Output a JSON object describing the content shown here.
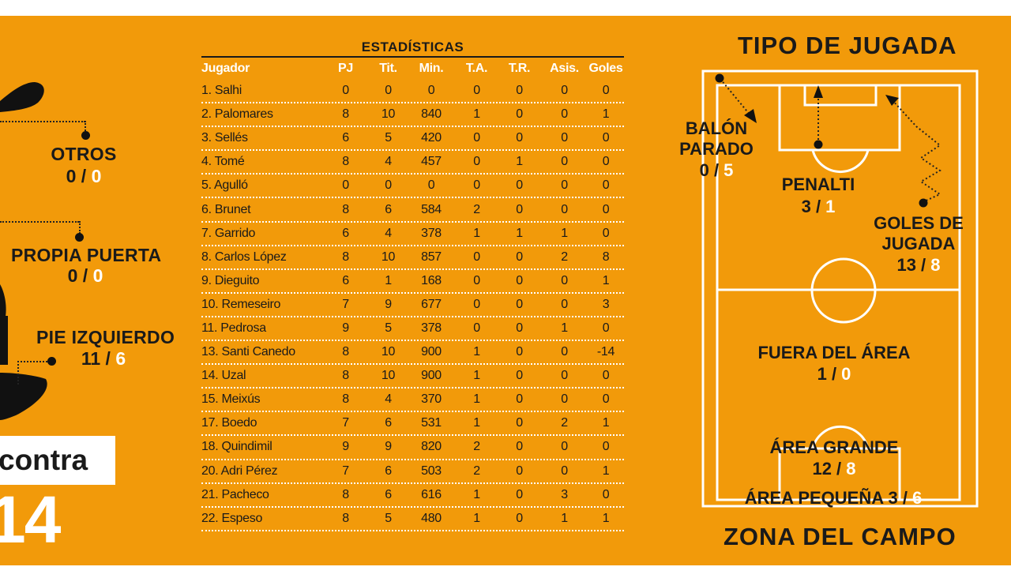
{
  "left": {
    "otros": {
      "label": "OTROS",
      "a": "0",
      "b": "0"
    },
    "propia_puerta": {
      "label": "PROPIA PUERTA",
      "a": "0",
      "b": "0"
    },
    "pie_izquierdo": {
      "label": "PIE IZQUIERDO",
      "a": "11",
      "b": "6"
    },
    "contra_label": "contra",
    "total": "14",
    "separator": " / "
  },
  "table": {
    "title": "ESTADÍSTICAS",
    "headers": [
      "Jugador",
      "PJ",
      "Tit.",
      "Min.",
      "T.A.",
      "T.R.",
      "Asis.",
      "Goles"
    ],
    "rows": [
      [
        "1. Salhi",
        "0",
        "0",
        "0",
        "0",
        "0",
        "0",
        "0"
      ],
      [
        "2. Palomares",
        "8",
        "10",
        "840",
        "1",
        "0",
        "0",
        "1"
      ],
      [
        "3. Sellés",
        "6",
        "5",
        "420",
        "0",
        "0",
        "0",
        "0"
      ],
      [
        "4. Tomé",
        "8",
        "4",
        "457",
        "0",
        "1",
        "0",
        "0"
      ],
      [
        "5. Agulló",
        "0",
        "0",
        "0",
        "0",
        "0",
        "0",
        "0"
      ],
      [
        "6. Brunet",
        "8",
        "6",
        "584",
        "2",
        "0",
        "0",
        "0"
      ],
      [
        "7. Garrido",
        "6",
        "4",
        "378",
        "1",
        "1",
        "1",
        "0"
      ],
      [
        "8. Carlos López",
        "8",
        "10",
        "857",
        "0",
        "0",
        "2",
        "8"
      ],
      [
        "9. Dieguito",
        "6",
        "1",
        "168",
        "0",
        "0",
        "0",
        "1"
      ],
      [
        "10. Remeseiro",
        "7",
        "9",
        "677",
        "0",
        "0",
        "0",
        "3"
      ],
      [
        "11. Pedrosa",
        "9",
        "5",
        "378",
        "0",
        "0",
        "1",
        "0"
      ],
      [
        "13. Santi Canedo",
        "8",
        "10",
        "900",
        "1",
        "0",
        "0",
        "-14"
      ],
      [
        "14. Uzal",
        "8",
        "10",
        "900",
        "1",
        "0",
        "0",
        "0"
      ],
      [
        "15. Meixús",
        "8",
        "4",
        "370",
        "1",
        "0",
        "0",
        "0"
      ],
      [
        "17. Boedo",
        "7",
        "6",
        "531",
        "1",
        "0",
        "2",
        "1"
      ],
      [
        "18. Quindimil",
        "9",
        "9",
        "820",
        "2",
        "0",
        "0",
        "0"
      ],
      [
        "20. Adri Pérez",
        "7",
        "6",
        "503",
        "2",
        "0",
        "0",
        "1"
      ],
      [
        "21. Pacheco",
        "8",
        "6",
        "616",
        "1",
        "0",
        "3",
        "0"
      ],
      [
        "22. Espeso",
        "8",
        "5",
        "480",
        "1",
        "0",
        "1",
        "1"
      ]
    ]
  },
  "right": {
    "tipo_title": "TIPO DE JUGADA",
    "zona_title": "ZONA DEL CAMPO",
    "balon_parado": {
      "label1": "BALÓN",
      "label2": "PARADO",
      "a": "0",
      "b": "5"
    },
    "penalti": {
      "label": "PENALTI",
      "a": "3",
      "b": "1"
    },
    "goles_jugada": {
      "label1": "GOLES DE",
      "label2": "JUGADA",
      "a": "13",
      "b": "8"
    },
    "fuera_area": {
      "label": "FUERA DEL ÁREA",
      "a": "1",
      "b": "0"
    },
    "area_grande": {
      "label": "ÁREA GRANDE",
      "a": "12",
      "b": "8"
    },
    "area_pequena": {
      "label": "ÁREA PEQUEÑA",
      "a": "3",
      "b": "6"
    }
  },
  "colors": {
    "panel": "#f29a0a",
    "dark": "#1a1a1a",
    "white": "#ffffff"
  }
}
